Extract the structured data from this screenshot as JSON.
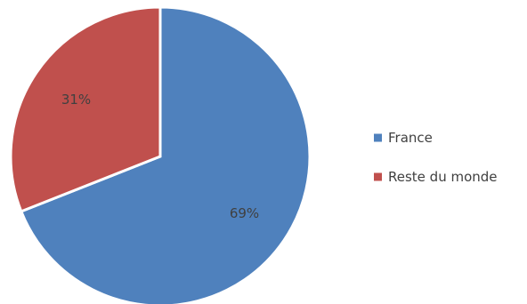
{
  "chart_data": {
    "type": "pie",
    "slices": [
      {
        "label": "France",
        "value": 69,
        "data_label": "69%",
        "color": "#4F81BD"
      },
      {
        "label": "Reste du monde",
        "value": 31,
        "data_label": "31%",
        "color": "#C0504D"
      }
    ],
    "start_angle": "12 o'clock",
    "direction": "clockwise",
    "legend_position": "right",
    "title": ""
  }
}
